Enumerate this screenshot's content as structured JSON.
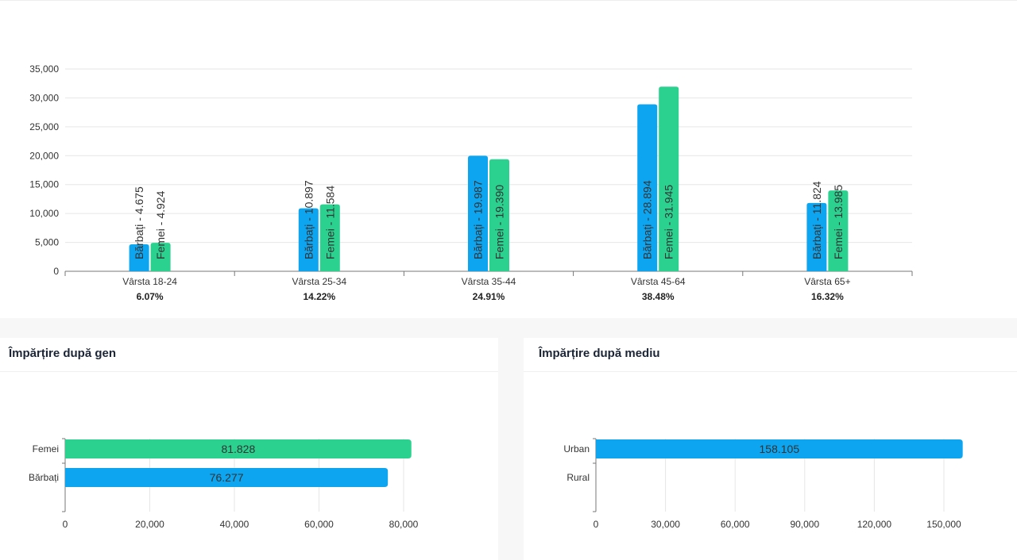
{
  "age_chart": {
    "chart_data": {
      "type": "bar",
      "categories": [
        "Vârsta 18-24",
        "Vârsta 25-34",
        "Vârsta 35-44",
        "Vârsta 45-64",
        "Vârsta 65+"
      ],
      "percentages": [
        "6.07%",
        "14.22%",
        "24.91%",
        "38.48%",
        "16.32%"
      ],
      "series": [
        {
          "name": "Bărbați",
          "values": [
            4675,
            10897,
            19987,
            28894,
            11824
          ],
          "labels": [
            "Bărbați - 4.675",
            "Bărbați - 10.897",
            "Bărbați - 19.987",
            "Bărbați - 28.894",
            "Bărbați - 11.824"
          ]
        },
        {
          "name": "Femei",
          "values": [
            4924,
            11584,
            19390,
            31945,
            13985
          ],
          "labels": [
            "Femei - 4.924",
            "Femei - 11.584",
            "Femei - 19.390",
            "Femei - 31.945",
            "Femei - 13.985"
          ]
        }
      ],
      "ylim": [
        0,
        35000
      ],
      "yticks": [
        "0",
        "5,000",
        "10,000",
        "15,000",
        "20,000",
        "25,000",
        "30,000",
        "35,000"
      ],
      "grid": true
    }
  },
  "gender_chart": {
    "title": "Împărțire după gen",
    "chart_data": {
      "type": "bar",
      "orientation": "horizontal",
      "categories": [
        "Femei",
        "Bărbați"
      ],
      "values": [
        81828,
        76277
      ],
      "value_labels": [
        "81.828",
        "76.277"
      ],
      "xlim": [
        0,
        80000
      ],
      "xticks": [
        "0",
        "20,000",
        "40,000",
        "60,000",
        "80,000"
      ],
      "grid": true
    }
  },
  "environment_chart": {
    "title": "Împărțire după mediu",
    "chart_data": {
      "type": "bar",
      "orientation": "horizontal",
      "categories": [
        "Urban",
        "Rural"
      ],
      "values": [
        158105,
        0
      ],
      "value_labels": [
        "158.105",
        ""
      ],
      "xlim": [
        0,
        150000
      ],
      "xticks": [
        "0",
        "30,000",
        "60,000",
        "90,000",
        "120,000",
        "150,000"
      ],
      "grid": true
    }
  },
  "colors": {
    "male": "#0ea5f0",
    "female": "#2bd18f",
    "grid": "#e6e6e6",
    "axis": "#777777"
  }
}
